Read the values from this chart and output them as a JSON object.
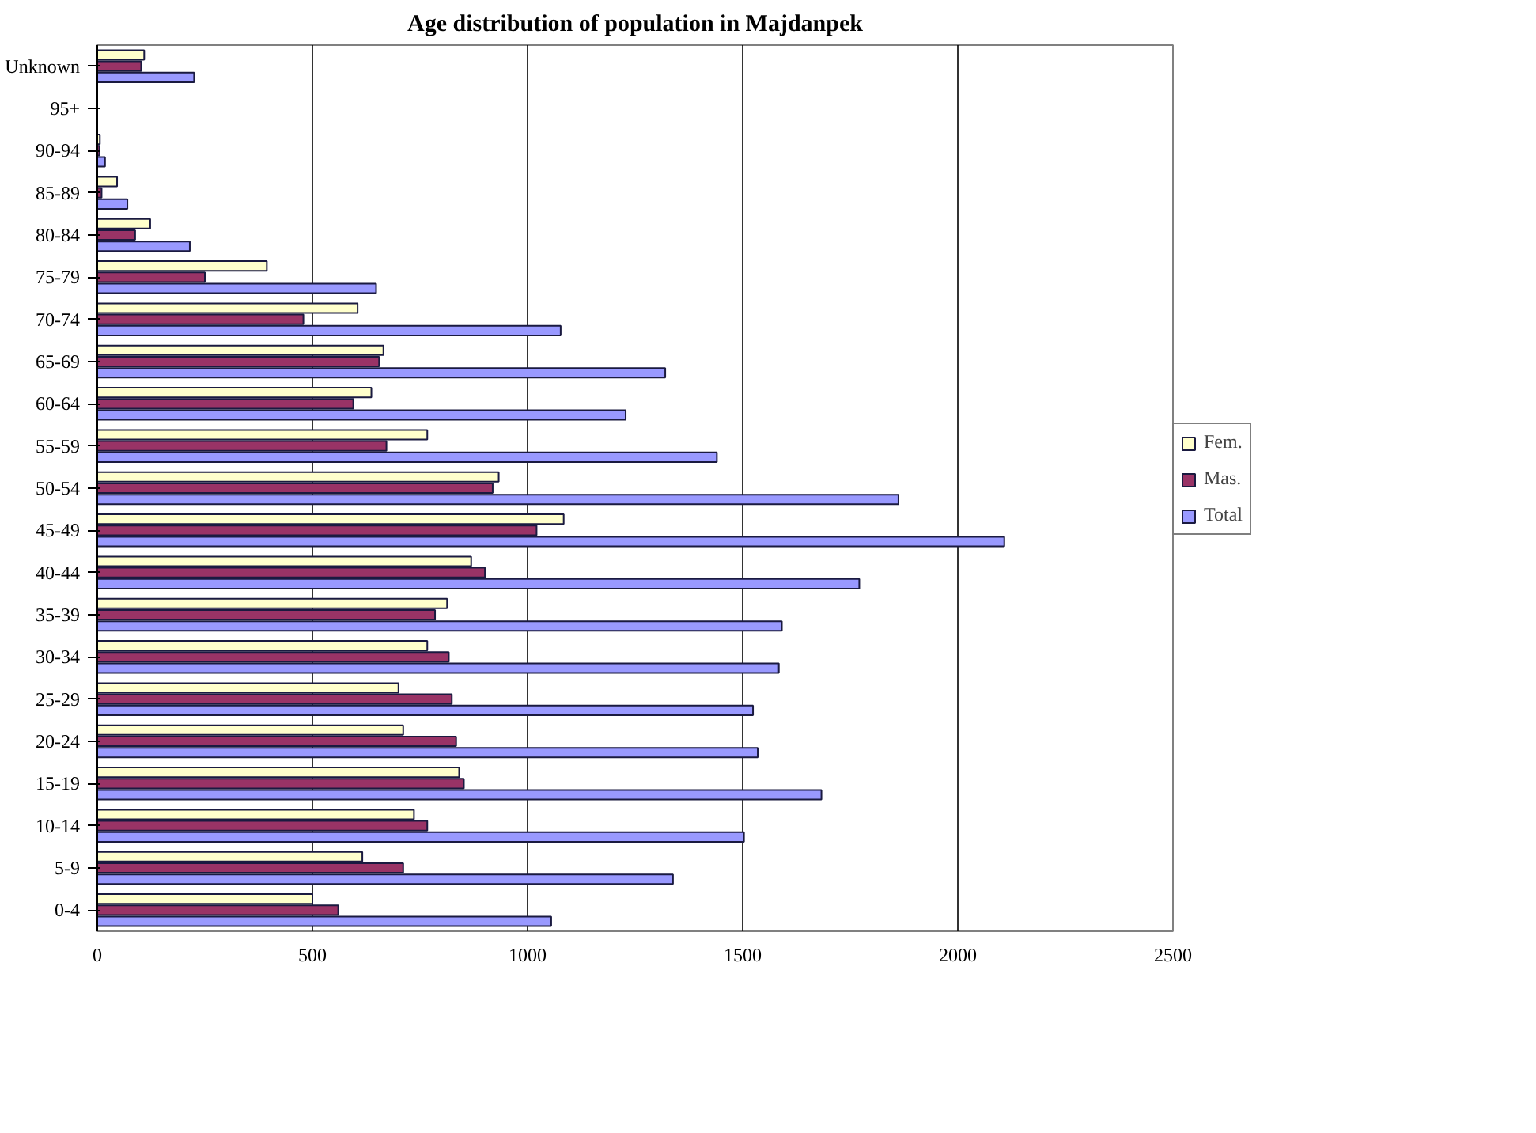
{
  "chart_data": {
    "type": "bar",
    "orientation": "horizontal",
    "title": "Age distribution of population in Majdanpek",
    "categories": [
      "Unknown",
      "95+",
      "90-94",
      "85-89",
      "80-84",
      "75-79",
      "70-74",
      "65-69",
      "60-64",
      "55-59",
      "50-54",
      "45-49",
      "40-44",
      "35-39",
      "30-34",
      "25-29",
      "20-24",
      "15-19",
      "10-14",
      "5-9",
      "0-4"
    ],
    "series": [
      {
        "name": "Fem.",
        "color": "#ffffcc",
        "values": [
          109,
          0,
          6,
          46,
          123,
          394,
          605,
          665,
          637,
          767,
          933,
          1084,
          869,
          813,
          767,
          700,
          711,
          841,
          736,
          616,
          500
        ]
      },
      {
        "name": "Mas.",
        "color": "#993366",
        "values": [
          102,
          0,
          5,
          10,
          88,
          250,
          479,
          655,
          595,
          672,
          919,
          1021,
          901,
          785,
          817,
          824,
          834,
          852,
          767,
          711,
          560
        ]
      },
      {
        "name": "Total",
        "color": "#9999ff",
        "values": [
          225,
          0,
          18,
          70,
          215,
          648,
          1077,
          1320,
          1228,
          1440,
          1862,
          2108,
          1771,
          1591,
          1584,
          1524,
          1535,
          1683,
          1503,
          1338,
          1055
        ]
      }
    ],
    "xlim": [
      0,
      2500
    ],
    "xticks": [
      0,
      500,
      1000,
      1500,
      2000,
      2500
    ],
    "grid": "x",
    "legend": "right"
  }
}
